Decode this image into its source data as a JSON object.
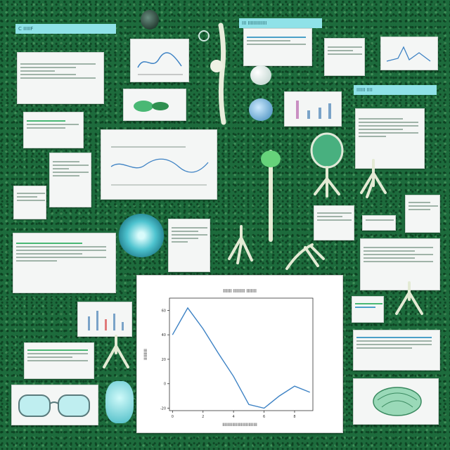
{
  "labels": {
    "top_left": "C IIIIIF",
    "top_center": "III IIIIIIIIIIIII",
    "right": "IIIIII IIII"
  },
  "chart_data": {
    "type": "line",
    "title": "IIIIII IIIIIIII IIIIIII",
    "xlabel": "IIIIIIIIIIIIIIIIIIIIIIIIIIII",
    "ylabel": "IIIIIIIII",
    "x": [
      0,
      1,
      2,
      3,
      4,
      5,
      6,
      7,
      8,
      9
    ],
    "values": [
      40,
      62,
      45,
      25,
      6,
      -17,
      -20,
      -10,
      -2,
      -7
    ],
    "ylim": [
      -22,
      70
    ],
    "xlim": [
      -0.2,
      9.2
    ],
    "x_ticks": [
      0,
      2,
      4,
      6,
      8
    ],
    "x_tick_labels": [
      "0",
      "2",
      "4",
      "6",
      "8"
    ],
    "y_ticks": [
      -20,
      0,
      20,
      40,
      60
    ],
    "y_tick_labels": [
      "-20",
      "0",
      "20",
      "40",
      "60"
    ],
    "grid": false,
    "line_color": "#3d82c4"
  },
  "colors": {
    "background": "#1d6b3c",
    "label_fill": "#8fe2e8",
    "accent_green": "#49b874",
    "accent_blue": "#4aa0c8"
  }
}
